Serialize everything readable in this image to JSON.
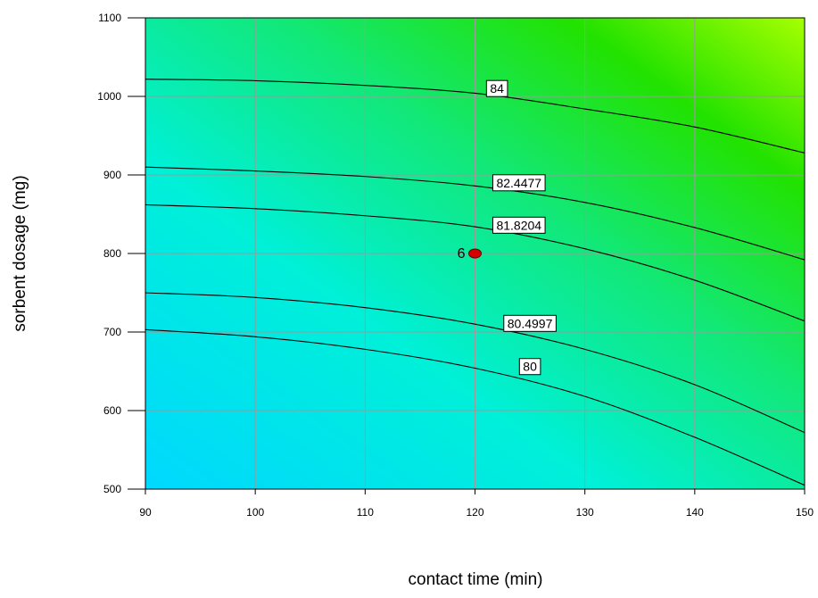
{
  "chart_data": {
    "type": "contour",
    "xlabel": "contact time (min)",
    "ylabel": "sorbent dosage (mg)",
    "xlim": [
      90,
      150
    ],
    "ylim": [
      500,
      1100
    ],
    "x_ticks": [
      90,
      100,
      110,
      120,
      130,
      140,
      150
    ],
    "y_ticks": [
      500,
      600,
      700,
      800,
      900,
      1000,
      1100
    ],
    "grid": true,
    "colors": {
      "top_right": "#a6ff00",
      "upper": "#22e200",
      "middle": "#12e878",
      "lower": "#00f0d8",
      "bottom_left": "#00d8ff"
    },
    "contours": [
      {
        "label": "84",
        "label_at": [
          122,
          1010
        ],
        "points": [
          [
            90,
            1022
          ],
          [
            100,
            1020
          ],
          [
            110,
            1014
          ],
          [
            120,
            1004
          ],
          [
            130,
            984
          ],
          [
            140,
            961
          ],
          [
            150,
            928
          ]
        ]
      },
      {
        "label": "82.4477",
        "label_at": [
          124,
          890
        ],
        "points": [
          [
            90,
            910
          ],
          [
            100,
            905
          ],
          [
            110,
            898
          ],
          [
            120,
            886
          ],
          [
            130,
            865
          ],
          [
            140,
            833
          ],
          [
            150,
            792
          ]
        ]
      },
      {
        "label": "81.8204",
        "label_at": [
          124,
          836
        ],
        "points": [
          [
            90,
            862
          ],
          [
            100,
            857
          ],
          [
            110,
            848
          ],
          [
            120,
            834
          ],
          [
            130,
            806
          ],
          [
            140,
            766
          ],
          [
            150,
            714
          ]
        ]
      },
      {
        "label": "80.4997",
        "label_at": [
          125,
          711
        ],
        "points": [
          [
            90,
            750
          ],
          [
            100,
            744
          ],
          [
            110,
            731
          ],
          [
            120,
            710
          ],
          [
            130,
            678
          ],
          [
            140,
            633
          ],
          [
            150,
            572
          ]
        ]
      },
      {
        "label": "80",
        "label_at": [
          125,
          656
        ],
        "points": [
          [
            90,
            703
          ],
          [
            100,
            694
          ],
          [
            110,
            678
          ],
          [
            120,
            654
          ],
          [
            130,
            618
          ],
          [
            140,
            566
          ],
          [
            150,
            505
          ]
        ]
      }
    ],
    "design_points": [
      {
        "x": 120,
        "y": 800,
        "label": "6"
      }
    ]
  }
}
